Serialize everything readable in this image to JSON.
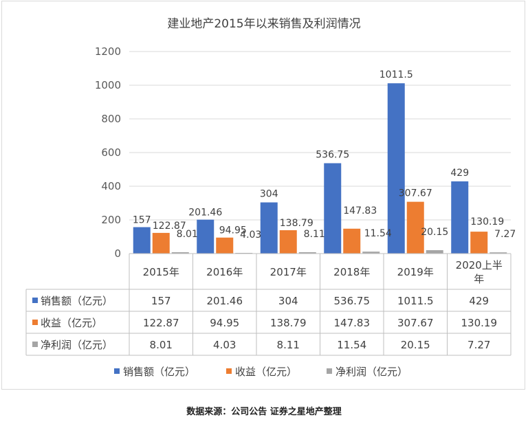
{
  "chart_data": {
    "type": "bar",
    "title": "建业地产2015年以来销售及利润情况",
    "categories": [
      "2015年",
      "2016年",
      "2017年",
      "2018年",
      "2019年",
      "2020上半年"
    ],
    "category_lines": [
      [
        "2015年"
      ],
      [
        "2016年"
      ],
      [
        "2017年"
      ],
      [
        "2018年"
      ],
      [
        "2019年"
      ],
      [
        "2020上半",
        "年"
      ]
    ],
    "ylim": [
      0,
      1200
    ],
    "yticks": [
      "0",
      "200",
      "400",
      "600",
      "800",
      "1000",
      "1200"
    ],
    "grid": true,
    "legend_position": "bottom",
    "series": [
      {
        "name": "销售额（亿元）",
        "color": "#4472c4",
        "values": [
          157,
          201.46,
          304,
          536.75,
          1011.5,
          429
        ],
        "labels": [
          "157",
          "201.46",
          "304",
          "536.75",
          "1011.5",
          "429"
        ]
      },
      {
        "name": "收益（亿元）",
        "color": "#ed7d31",
        "values": [
          122.87,
          94.95,
          138.79,
          147.83,
          307.67,
          130.19
        ],
        "labels": [
          "122.87",
          "94.95",
          "138.79",
          "147.83",
          "307.67",
          "130.19"
        ]
      },
      {
        "name": "净利润（亿元）",
        "color": "#a5a5a5",
        "values": [
          8.01,
          4.03,
          8.11,
          11.54,
          20.15,
          7.27
        ],
        "labels": [
          "8.01",
          "4.03",
          "8.11",
          "11.54",
          "20.15",
          "7.27"
        ]
      }
    ]
  },
  "source_note": "数据来源：公司公告  证券之星地产整理"
}
